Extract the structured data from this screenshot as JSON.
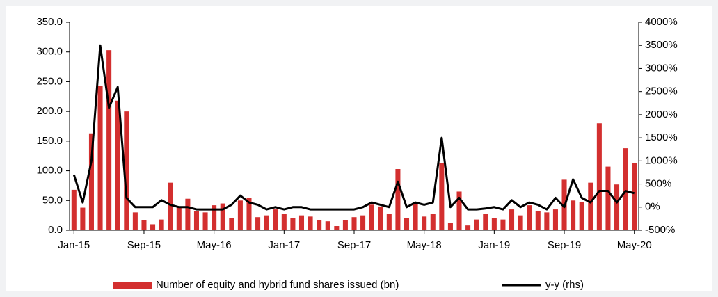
{
  "chart_data": {
    "type": "bar_line",
    "categories": [
      "Jan-15",
      null,
      null,
      null,
      null,
      null,
      null,
      null,
      "Sep-15",
      null,
      null,
      null,
      null,
      null,
      null,
      null,
      "May-16",
      null,
      null,
      null,
      null,
      null,
      null,
      null,
      "Jan-17",
      null,
      null,
      null,
      null,
      null,
      null,
      null,
      "Sep-17",
      null,
      null,
      null,
      null,
      null,
      null,
      null,
      "May-18",
      null,
      null,
      null,
      null,
      null,
      null,
      null,
      "Jan-19",
      null,
      null,
      null,
      null,
      null,
      null,
      null,
      "Sep-19",
      null,
      null,
      null,
      null,
      null,
      null,
      null,
      "May-20"
    ],
    "series": [
      {
        "name": "Number of equity and hybrid fund shares issued (bn)",
        "color": "#d32f2f",
        "kind": "bar",
        "values": [
          68,
          38,
          163,
          243,
          303,
          218,
          200,
          30,
          17,
          10,
          18,
          80,
          40,
          53,
          32,
          30,
          42,
          45,
          20,
          50,
          55,
          22,
          25,
          35,
          27,
          20,
          25,
          23,
          17,
          15,
          7,
          17,
          22,
          25,
          43,
          40,
          27,
          103,
          20,
          45,
          23,
          27,
          113,
          12,
          65,
          8,
          18,
          28,
          20,
          18,
          35,
          25,
          42,
          32,
          30,
          35,
          85,
          50,
          48,
          80,
          180,
          107,
          77,
          138,
          113
        ]
      },
      {
        "name": "y-y (rhs)",
        "color": "#000000",
        "kind": "line",
        "axis": "y2",
        "values": [
          700,
          100,
          1000,
          3500,
          2150,
          2600,
          200,
          0,
          0,
          0,
          150,
          50,
          0,
          0,
          -50,
          -50,
          -50,
          -50,
          50,
          250,
          100,
          50,
          -50,
          0,
          -50,
          0,
          0,
          -50,
          -50,
          -50,
          -50,
          -50,
          -50,
          0,
          100,
          50,
          0,
          550,
          0,
          100,
          50,
          100,
          1500,
          0,
          200,
          -50,
          -50,
          -30,
          0,
          -50,
          150,
          0,
          100,
          50,
          -50,
          200,
          0,
          600,
          200,
          100,
          350,
          350,
          100,
          350,
          300
        ]
      }
    ],
    "ylim": [
      0,
      350
    ],
    "yticks": [
      {
        "value": 0,
        "label": "0.0"
      },
      {
        "value": 50,
        "label": "50.0"
      },
      {
        "value": 100,
        "label": "100.0"
      },
      {
        "value": 150,
        "label": "150.0"
      },
      {
        "value": 200,
        "label": "200.0"
      },
      {
        "value": 250,
        "label": "250.0"
      },
      {
        "value": 300,
        "label": "300.0"
      },
      {
        "value": 350,
        "label": "350.0"
      }
    ],
    "y2lim": [
      -500,
      4000
    ],
    "y2ticks": [
      {
        "value": -500,
        "label": "-500%"
      },
      {
        "value": 0,
        "label": "0%"
      },
      {
        "value": 500,
        "label": "500%"
      },
      {
        "value": 1000,
        "label": "1000%"
      },
      {
        "value": 1500,
        "label": "1500%"
      },
      {
        "value": 2000,
        "label": "2000%"
      },
      {
        "value": 2500,
        "label": "2500%"
      },
      {
        "value": 3000,
        "label": "3000%"
      },
      {
        "value": 3500,
        "label": "3500%"
      },
      {
        "value": 4000,
        "label": "4000%"
      }
    ],
    "legend": "bottom"
  }
}
